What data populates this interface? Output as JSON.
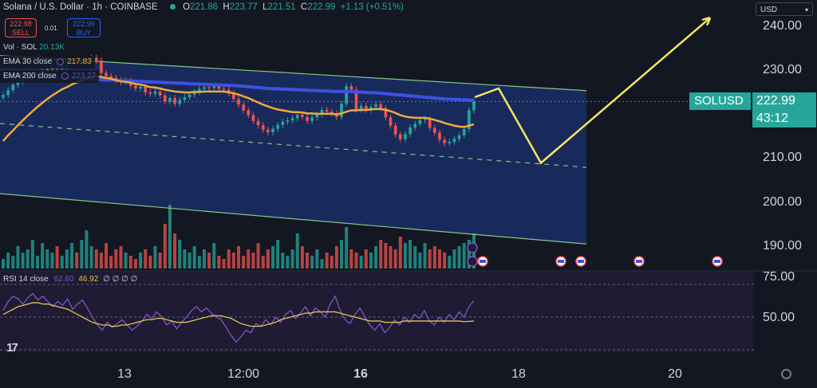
{
  "header": {
    "symbol": "Solana / U.S. Dollar · 1h · COINBASE",
    "open_label": "O",
    "open": "221.86",
    "high_label": "H",
    "high": "223.77",
    "low_label": "L",
    "low": "221.51",
    "close_label": "C",
    "close": "222.99",
    "change": "+1.13 (+0.51%)"
  },
  "trade": {
    "sell_price": "222.98",
    "sell_label": "SELL",
    "spread": "0.01",
    "buy_price": "222.99",
    "buy_label": "BUY"
  },
  "legends": {
    "vol": {
      "label": "Vol · SOL",
      "value": "20.13K"
    },
    "ema30": {
      "label": "EMA 30 close",
      "value": "217.83"
    },
    "ema200": {
      "label": "EMA 200 close",
      "value": "223.27"
    },
    "rsi": {
      "label": "RSI 14 close",
      "value": "62.60",
      "ma_value": "46.92",
      "extra": "∅ ∅ ∅ ∅"
    }
  },
  "currency": "USD",
  "price_tag": {
    "symbol": "SOLUSD",
    "price": "222.99",
    "countdown": "43:12"
  },
  "colors": {
    "up": "#26a69a",
    "down": "#ef5350",
    "ema30": "#f2a93b",
    "ema200": "#3f51e0",
    "channel": "#81c784",
    "projection": "#f5e663",
    "rsi": "#7e57c2",
    "rsi_ma": "#e6c15a"
  },
  "chart_data": {
    "type": "line",
    "x_ticks": [
      "13",
      "12:00",
      "16",
      "18",
      "20"
    ],
    "y_ticks": [
      "240.00",
      "230.00",
      "210.00",
      "200.00",
      "190.00"
    ],
    "ylim": [
      185,
      245
    ],
    "rsi_ticks": [
      "75.00",
      "50.00"
    ],
    "rsi_lim": [
      25,
      80
    ],
    "close": [
      224.5,
      225.6,
      226.8,
      227.5,
      228.1,
      228.4,
      228.8,
      229.3,
      229.9,
      230.4,
      230.9,
      230.5,
      231.0,
      231.5,
      232.0,
      231.6,
      232.1,
      232.6,
      233.0,
      232.4,
      229.5,
      228.8,
      228.4,
      227.9,
      227.5,
      227.8,
      226.6,
      226.0,
      226.4,
      225.1,
      224.8,
      225.3,
      224.4,
      223.0,
      223.8,
      222.5,
      223.4,
      224.0,
      224.6,
      225.2,
      225.9,
      226.3,
      226.1,
      226.5,
      225.9,
      225.7,
      224.9,
      223.6,
      222.3,
      221.0,
      219.9,
      218.6,
      217.6,
      216.6,
      216.0,
      216.8,
      217.7,
      218.4,
      218.7,
      219.2,
      220.0,
      219.5,
      218.6,
      219.4,
      220.0,
      221.1,
      220.7,
      220.3,
      219.5,
      222.5,
      226.5,
      225.7,
      221.2,
      222.0,
      221.1,
      221.8,
      222.4,
      221.5,
      219.4,
      217.5,
      215.5,
      214.4,
      215.6,
      217.1,
      217.9,
      218.8,
      219.0,
      217.0,
      215.9,
      214.3,
      213.5,
      213.8,
      214.5,
      215.3,
      216.7,
      221.0,
      222.99
    ],
    "ema30": [
      214.0,
      215.3,
      216.4,
      217.6,
      218.7,
      219.8,
      220.8,
      221.8,
      222.7,
      223.6,
      224.4,
      225.1,
      225.8,
      226.3,
      226.9,
      227.4,
      227.9,
      228.3,
      228.6,
      228.8,
      228.6,
      228.4,
      228.2,
      227.9,
      227.6,
      227.5,
      227.3,
      227.0,
      226.9,
      226.6,
      226.3,
      226.2,
      226.0,
      225.7,
      225.5,
      225.3,
      225.2,
      225.1,
      225.1,
      225.2,
      225.2,
      225.3,
      225.3,
      225.3,
      225.3,
      225.3,
      225.1,
      224.9,
      224.6,
      224.2,
      223.8,
      223.3,
      222.8,
      222.3,
      221.9,
      221.5,
      221.2,
      221.0,
      220.8,
      220.6,
      220.6,
      220.5,
      220.3,
      220.3,
      220.2,
      220.2,
      220.2,
      220.2,
      220.1,
      220.3,
      220.7,
      221.0,
      221.0,
      221.1,
      221.1,
      221.2,
      221.3,
      221.3,
      221.1,
      220.8,
      220.4,
      219.9,
      219.6,
      219.4,
      219.3,
      219.3,
      219.3,
      219.1,
      218.8,
      218.5,
      218.1,
      217.8,
      217.5,
      217.3,
      217.2,
      217.5,
      217.83
    ],
    "ema200": [
      229.0,
      228.95,
      228.9,
      228.85,
      228.8,
      228.75,
      228.7,
      228.65,
      228.6,
      228.55,
      228.5,
      228.45,
      228.4,
      228.35,
      228.3,
      228.25,
      228.2,
      228.15,
      228.1,
      228.05,
      228.0,
      227.95,
      227.9,
      227.85,
      227.8,
      227.75,
      227.7,
      227.65,
      227.6,
      227.55,
      227.5,
      227.45,
      227.4,
      227.35,
      227.3,
      227.25,
      227.2,
      227.15,
      227.1,
      227.05,
      227.0,
      226.95,
      226.9,
      226.85,
      226.8,
      226.75,
      226.7,
      226.65,
      226.6,
      226.5,
      226.4,
      226.3,
      226.2,
      226.1,
      226.0,
      225.95,
      225.9,
      225.85,
      225.8,
      225.75,
      225.7,
      225.65,
      225.6,
      225.55,
      225.5,
      225.45,
      225.4,
      225.35,
      225.3,
      225.3,
      225.3,
      225.25,
      225.2,
      225.15,
      225.1,
      225.05,
      225.0,
      224.9,
      224.8,
      224.7,
      224.6,
      224.5,
      224.4,
      224.3,
      224.2,
      224.1,
      224.0,
      223.9,
      223.8,
      223.7,
      223.6,
      223.55,
      223.5,
      223.45,
      223.4,
      223.35,
      223.27
    ],
    "volume": [
      3,
      5,
      4,
      7,
      5,
      6,
      9,
      4,
      8,
      6,
      5,
      7,
      4,
      6,
      8,
      5,
      9,
      12,
      7,
      6,
      5,
      8,
      4,
      6,
      7,
      5,
      4,
      3,
      5,
      6,
      4,
      7,
      5,
      14,
      20,
      11,
      9,
      6,
      5,
      7,
      4,
      6,
      5,
      8,
      4,
      3,
      6,
      5,
      7,
      4,
      6,
      5,
      8,
      4,
      6,
      7,
      9,
      5,
      4,
      6,
      11,
      7,
      5,
      4,
      6,
      3,
      5,
      4,
      7,
      9,
      13,
      6,
      5,
      4,
      6,
      5,
      7,
      9,
      8,
      7,
      6,
      10,
      8,
      9,
      7,
      5,
      8,
      6,
      7,
      6,
      5,
      4,
      6,
      7,
      8,
      9,
      11
    ],
    "rsi": [
      55,
      62,
      66,
      64,
      60,
      65,
      68,
      63,
      66,
      62,
      58,
      62,
      59,
      64,
      56,
      60,
      63,
      57,
      50,
      44,
      40,
      46,
      42,
      45,
      48,
      44,
      40,
      43,
      47,
      52,
      49,
      54,
      50,
      44,
      47,
      41,
      46,
      50,
      55,
      58,
      54,
      57,
      53,
      50,
      48,
      42,
      36,
      31,
      35,
      40,
      38,
      45,
      43,
      48,
      44,
      50,
      46,
      52,
      55,
      49,
      53,
      58,
      51,
      57,
      54,
      50,
      60,
      66,
      55,
      48,
      45,
      52,
      57,
      50,
      44,
      40,
      45,
      38,
      42,
      48,
      44,
      50,
      46,
      52,
      49,
      55,
      47,
      44,
      50,
      46,
      52,
      48,
      54,
      50,
      58,
      62.6
    ],
    "rsi_ma": [
      52,
      54,
      56,
      58,
      59,
      60,
      61,
      61,
      60,
      60,
      59,
      58,
      57,
      56,
      54,
      52,
      50,
      48,
      46,
      45,
      44,
      44,
      43,
      43,
      44,
      44,
      45,
      46,
      47,
      48,
      48,
      49,
      49,
      48,
      47,
      46,
      46,
      46,
      47,
      48,
      49,
      50,
      51,
      51,
      51,
      50,
      49,
      47,
      45,
      44,
      43,
      43,
      43,
      44,
      45,
      46,
      48,
      49,
      50,
      51,
      52,
      53,
      53,
      54,
      54,
      54,
      54,
      54,
      53,
      52,
      51,
      50,
      49,
      48,
      47,
      47,
      47,
      46,
      46,
      46,
      46,
      47,
      47,
      47,
      47,
      47,
      47,
      47,
      47,
      47,
      47,
      47,
      47,
      46.5,
      46.7,
      46.92
    ],
    "channel": {
      "upper": [
        [
          0,
          233.5
        ],
        [
          735,
          225.5
        ]
      ],
      "lower": [
        [
          0,
          202.0
        ],
        [
          735,
          190.5
        ]
      ],
      "mid": [
        [
          0,
          218.0
        ],
        [
          735,
          208.0
        ]
      ]
    },
    "projection": [
      [
        595,
        224.0
      ],
      [
        625,
        226.0
      ],
      [
        678,
        209.0
      ],
      [
        888,
        241.8
      ]
    ]
  }
}
